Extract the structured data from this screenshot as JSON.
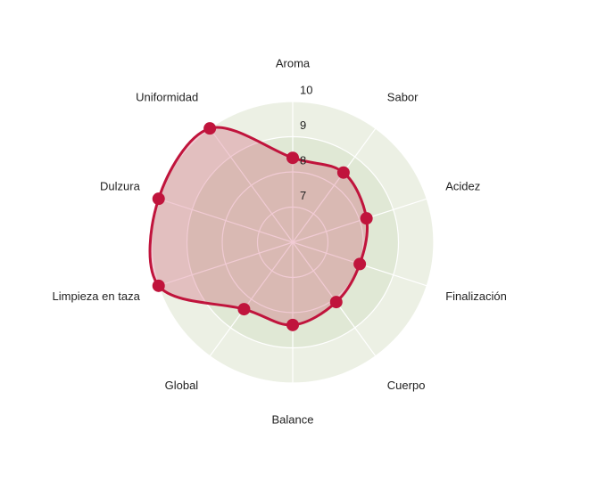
{
  "chart_data": {
    "type": "radar",
    "categories": [
      "Aroma",
      "Sabor",
      "Acidez",
      "Finalización",
      "Cuerpo",
      "Balance",
      "Global",
      "Limpieza en taza",
      "Dulzura",
      "Uniformidad"
    ],
    "values": [
      8.4,
      8.45,
      8.2,
      8.0,
      8.1,
      8.35,
      8.35,
      10,
      10,
      10
    ],
    "color": "#c0143c",
    "rlim": [
      6,
      10
    ],
    "rticks": [
      7,
      8,
      9,
      10
    ],
    "grid": true
  }
}
